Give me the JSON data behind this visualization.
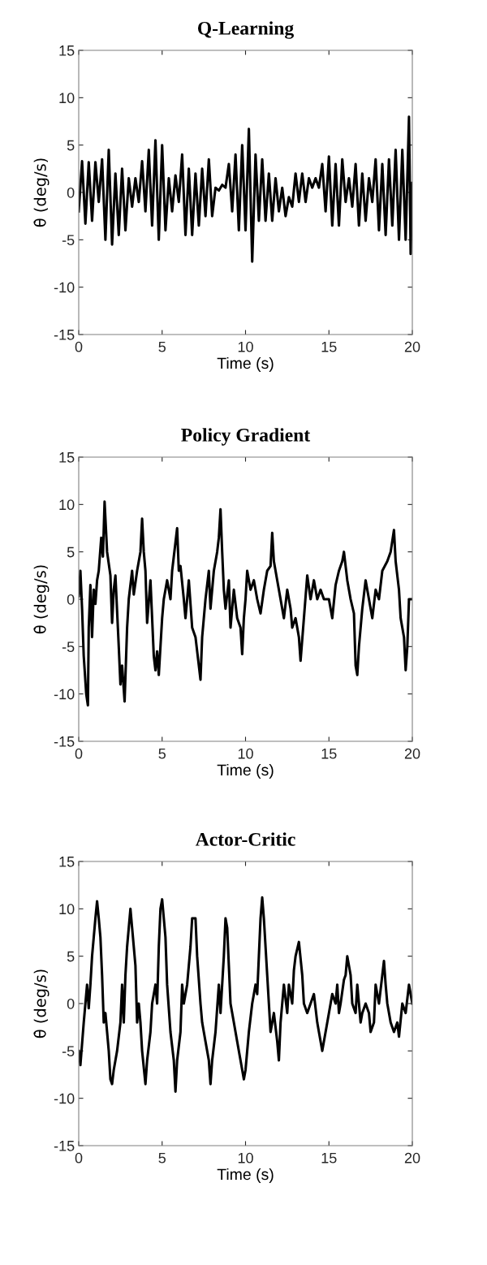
{
  "chart_data": [
    {
      "type": "line",
      "title": "Q-Learning",
      "xlabel": "Time (s)",
      "ylabel": "θ̇ (deg/s)",
      "xlim": [
        0,
        20
      ],
      "ylim": [
        -15,
        15
      ],
      "xticks": [
        0,
        5,
        10,
        15,
        20
      ],
      "yticks": [
        -15,
        -10,
        -5,
        0,
        5,
        10,
        15
      ],
      "series": [
        {
          "color": "#000000",
          "x": [
            0,
            0.2,
            0.4,
            0.6,
            0.8,
            1.0,
            1.2,
            1.4,
            1.6,
            1.8,
            2.0,
            2.2,
            2.4,
            2.6,
            2.8,
            3.0,
            3.2,
            3.4,
            3.6,
            3.8,
            4.0,
            4.2,
            4.4,
            4.6,
            4.8,
            5.0,
            5.2,
            5.4,
            5.6,
            5.8,
            6.0,
            6.2,
            6.4,
            6.6,
            6.8,
            7.0,
            7.2,
            7.4,
            7.6,
            7.8,
            8.0,
            8.2,
            8.4,
            8.6,
            8.8,
            9.0,
            9.2,
            9.4,
            9.6,
            9.8,
            10.0,
            10.2,
            10.4,
            10.6,
            10.8,
            11.0,
            11.2,
            11.4,
            11.6,
            11.8,
            12.0,
            12.2,
            12.4,
            12.6,
            12.8,
            13.0,
            13.2,
            13.4,
            13.6,
            13.8,
            14.0,
            14.2,
            14.4,
            14.6,
            14.8,
            15.0,
            15.2,
            15.4,
            15.6,
            15.8,
            16.0,
            16.2,
            16.4,
            16.6,
            16.8,
            17.0,
            17.2,
            17.4,
            17.6,
            17.8,
            18.0,
            18.2,
            18.4,
            18.6,
            18.8,
            19.0,
            19.2,
            19.4,
            19.6,
            19.8,
            19.9,
            20
          ],
          "values": [
            -2,
            3.3,
            -3.3,
            3.2,
            -3,
            3.2,
            -1,
            3.5,
            -5,
            4.5,
            -5.5,
            2,
            -4.5,
            2.5,
            -4,
            1.5,
            -1.5,
            1.5,
            -1,
            3.3,
            -2,
            4.5,
            -3.5,
            5.5,
            -5,
            5,
            -4,
            1.5,
            -2,
            1.8,
            -1,
            4,
            -4.5,
            2.5,
            -4.5,
            2,
            -3.5,
            2.5,
            -2.5,
            3.5,
            -2.5,
            0.5,
            0.2,
            0.8,
            0.5,
            3,
            -2,
            4,
            -4,
            5,
            -4,
            6.7,
            -7.3,
            4,
            -3,
            3.5,
            -3,
            2,
            -3,
            1.5,
            -2,
            0.5,
            -2.5,
            -0.5,
            -1.5,
            2,
            -1,
            2,
            -1,
            1.5,
            0.5,
            1.5,
            0.5,
            3,
            -2,
            3.8,
            -3.5,
            3,
            -3.5,
            3.5,
            -1,
            1.5,
            -1.5,
            3,
            -3.5,
            2,
            -3,
            1.5,
            -1,
            3.5,
            -4,
            3,
            -4.5,
            3.5,
            -3.5,
            4.5,
            -5,
            4.5,
            -5,
            8,
            -6.5,
            1
          ]
        }
      ]
    },
    {
      "type": "line",
      "title": "Policy Gradient",
      "xlabel": "Time (s)",
      "ylabel": "θ̇ (deg/s)",
      "xlim": [
        0,
        20
      ],
      "ylim": [
        -15,
        15
      ],
      "xticks": [
        0,
        5,
        10,
        15,
        20
      ],
      "yticks": [
        -15,
        -10,
        -5,
        0,
        5,
        10,
        15
      ],
      "series": [
        {
          "color": "#000000",
          "x": [
            0,
            0.1,
            0.2,
            0.3,
            0.45,
            0.55,
            0.6,
            0.7,
            0.8,
            0.9,
            1.0,
            1.1,
            1.2,
            1.35,
            1.45,
            1.55,
            1.7,
            1.9,
            2.0,
            2.1,
            2.2,
            2.4,
            2.5,
            2.6,
            2.75,
            2.9,
            3.0,
            3.2,
            3.3,
            3.5,
            3.7,
            3.8,
            3.9,
            4.0,
            4.1,
            4.3,
            4.5,
            4.6,
            4.7,
            4.8,
            5.0,
            5.1,
            5.3,
            5.5,
            5.6,
            5.8,
            5.9,
            6.0,
            6.1,
            6.3,
            6.4,
            6.6,
            6.8,
            7.0,
            7.2,
            7.3,
            7.4,
            7.6,
            7.8,
            7.9,
            8.1,
            8.3,
            8.4,
            8.5,
            8.6,
            8.7,
            8.8,
            9.0,
            9.1,
            9.3,
            9.5,
            9.7,
            9.8,
            9.9,
            10.0,
            10.1,
            10.3,
            10.5,
            10.7,
            10.9,
            11.1,
            11.3,
            11.5,
            11.6,
            11.7,
            11.9,
            12.1,
            12.3,
            12.5,
            12.7,
            12.8,
            13.0,
            13.2,
            13.3,
            13.5,
            13.7,
            13.9,
            14.1,
            14.3,
            14.5,
            14.7,
            15.0,
            15.2,
            15.4,
            15.6,
            15.8,
            15.9,
            16.1,
            16.3,
            16.5,
            16.6,
            16.7,
            16.8,
            17.0,
            17.2,
            17.4,
            17.6,
            17.8,
            18.0,
            18.2,
            18.5,
            18.7,
            18.9,
            19.0,
            19.2,
            19.3,
            19.5,
            19.6,
            19.7,
            19.8,
            20
          ],
          "values": [
            0.3,
            3,
            -1,
            -6,
            -10,
            -11.2,
            -3,
            1.5,
            -4,
            1,
            -0.5,
            2,
            3,
            6.5,
            4.5,
            10.3,
            5,
            2.5,
            -2.5,
            1,
            2.5,
            -5,
            -9,
            -7,
            -10.8,
            -3,
            0,
            3,
            0.5,
            3,
            5,
            8.5,
            5,
            3,
            -2.5,
            2,
            -6,
            -7.5,
            -5.5,
            -8,
            -2,
            0,
            2,
            0,
            3,
            6,
            7.5,
            3,
            3.5,
            0,
            -2,
            2,
            -3,
            -4,
            -7,
            -8.5,
            -4,
            0,
            3,
            -1,
            3,
            5,
            6.5,
            9.5,
            5,
            1,
            -1,
            2,
            -3,
            1,
            -2,
            -3,
            -5.8,
            -2,
            0,
            3,
            1,
            2,
            0,
            -1.5,
            1,
            3,
            3.5,
            7,
            4,
            2,
            0,
            -2,
            1,
            -1,
            -3,
            -2,
            -4,
            -6.5,
            -2,
            2.5,
            0,
            2,
            0,
            1,
            0,
            0,
            -2,
            1.5,
            3,
            4,
            5,
            2,
            0,
            -1.5,
            -7,
            -8,
            -5,
            -1,
            2,
            0,
            -2,
            1,
            0,
            3,
            4,
            5,
            7.3,
            4,
            1,
            -2,
            -4,
            -7.5,
            -5,
            0,
            0
          ]
        }
      ]
    },
    {
      "type": "line",
      "title": "Actor-Critic",
      "xlabel": "Time (s)",
      "ylabel": "θ̇ (deg/s)",
      "xlim": [
        0,
        20
      ],
      "ylim": [
        -15,
        15
      ],
      "xticks": [
        0,
        5,
        10,
        15,
        20
      ],
      "yticks": [
        -15,
        -10,
        -5,
        0,
        5,
        10,
        15
      ],
      "series": [
        {
          "color": "#000000",
          "x": [
            0,
            0.1,
            0.3,
            0.5,
            0.6,
            0.7,
            0.8,
            0.9,
            1.0,
            1.1,
            1.2,
            1.3,
            1.4,
            1.5,
            1.6,
            1.7,
            1.8,
            1.9,
            2.0,
            2.1,
            2.3,
            2.5,
            2.6,
            2.7,
            2.8,
            2.9,
            3.0,
            3.1,
            3.2,
            3.4,
            3.5,
            3.6,
            3.7,
            3.8,
            4.0,
            4.1,
            4.3,
            4.4,
            4.6,
            4.7,
            4.8,
            4.9,
            5.0,
            5.2,
            5.3,
            5.5,
            5.7,
            5.8,
            5.9,
            6.1,
            6.2,
            6.3,
            6.5,
            6.7,
            6.8,
            7.0,
            7.1,
            7.3,
            7.4,
            7.6,
            7.8,
            7.9,
            8.0,
            8.2,
            8.4,
            8.5,
            8.7,
            8.8,
            8.9,
            9.0,
            9.1,
            9.3,
            9.5,
            9.7,
            9.9,
            10.0,
            10.2,
            10.4,
            10.6,
            10.7,
            10.8,
            10.9,
            11.0,
            11.1,
            11.3,
            11.4,
            11.5,
            11.7,
            11.9,
            12.0,
            12.1,
            12.3,
            12.5,
            12.6,
            12.8,
            12.9,
            13.0,
            13.2,
            13.4,
            13.5,
            13.7,
            13.9,
            14.1,
            14.3,
            14.4,
            14.6,
            14.8,
            15.0,
            15.2,
            15.4,
            15.5,
            15.6,
            15.7,
            15.9,
            16.0,
            16.1,
            16.3,
            16.4,
            16.6,
            16.7,
            16.9,
            17.0,
            17.2,
            17.4,
            17.5,
            17.7,
            17.8,
            18.0,
            18.2,
            18.3,
            18.4,
            18.5,
            18.7,
            18.9,
            19.1,
            19.2,
            19.4,
            19.6,
            19.8,
            20
          ],
          "values": [
            -5,
            -6.5,
            -2,
            2,
            -0.5,
            2,
            5,
            7,
            9,
            10.8,
            9,
            7,
            3,
            -2,
            -1,
            -3,
            -5,
            -8,
            -8.5,
            -7,
            -5,
            -2,
            2,
            -2,
            3,
            6,
            8,
            10,
            8,
            4,
            -2,
            0,
            -2,
            -5,
            -8.5,
            -6,
            -3,
            0,
            2,
            0,
            6,
            10,
            11,
            7,
            2,
            -3,
            -6,
            -9.3,
            -6,
            -3,
            2,
            0,
            2,
            6,
            9,
            9,
            5,
            0,
            -2,
            -4,
            -6,
            -8.5,
            -6,
            -3,
            2,
            -1,
            5,
            9,
            8,
            4,
            0,
            -2,
            -4,
            -6,
            -8,
            -7,
            -3,
            0,
            2,
            1,
            5,
            9,
            11.2,
            9,
            3,
            0,
            -3,
            -1,
            -4,
            -6,
            -2,
            2,
            -1,
            2,
            0,
            3.5,
            5,
            6.5,
            3,
            0,
            -1,
            0,
            1,
            -2,
            -3,
            -5,
            -3,
            -1,
            1,
            0,
            2,
            -1,
            0,
            2.5,
            3,
            5,
            3,
            0,
            -1,
            2,
            -2,
            -1,
            0,
            -1,
            -3,
            -2,
            2,
            0,
            3,
            4.5,
            2,
            0,
            -2,
            -3,
            -2,
            -3.5,
            0,
            -1,
            2,
            0
          ]
        }
      ]
    }
  ]
}
